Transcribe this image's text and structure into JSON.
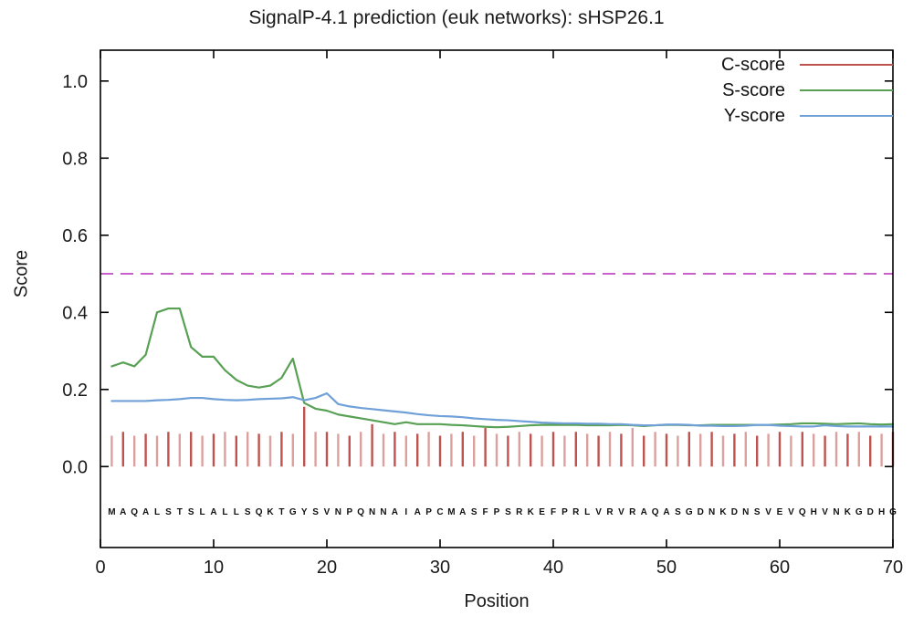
{
  "chart_data": {
    "type": "line",
    "title": "SignalP-4.1 prediction (euk networks): sHSP26.1",
    "xlabel": "Position",
    "ylabel": "Score",
    "xlim": [
      0,
      70
    ],
    "ylim": [
      -0.21,
      1.08
    ],
    "xticks": [
      0,
      10,
      20,
      30,
      40,
      50,
      60,
      70
    ],
    "yticks": [
      0.0,
      0.2,
      0.4,
      0.6,
      0.8,
      1.0
    ],
    "grid": false,
    "legend_position": "top-right",
    "threshold": {
      "value": 0.5,
      "color": "#c95fc9",
      "style": "dashed"
    },
    "sequence": "MAQALSTSLALLSQKTGYSVNPQNNAIAPCMASFPSRKEFPRLVRVRAQASGDNKDNSVEVQHVNKGDHG",
    "x_start": 1,
    "series": [
      {
        "name": "C-score",
        "color": "#bf5350",
        "style": "impulses",
        "values": [
          0.08,
          0.09,
          0.08,
          0.085,
          0.08,
          0.09,
          0.085,
          0.09,
          0.08,
          0.085,
          0.09,
          0.08,
          0.09,
          0.085,
          0.08,
          0.09,
          0.085,
          0.155,
          0.09,
          0.09,
          0.085,
          0.08,
          0.09,
          0.11,
          0.085,
          0.09,
          0.08,
          0.085,
          0.09,
          0.08,
          0.085,
          0.09,
          0.08,
          0.1,
          0.085,
          0.08,
          0.09,
          0.085,
          0.08,
          0.09,
          0.08,
          0.09,
          0.085,
          0.08,
          0.09,
          0.085,
          0.1,
          0.08,
          0.09,
          0.085,
          0.08,
          0.09,
          0.085,
          0.09,
          0.08,
          0.085,
          0.09,
          0.08,
          0.085,
          0.09,
          0.08,
          0.09,
          0.085,
          0.08,
          0.09,
          0.085,
          0.09,
          0.08,
          0.085,
          0.09
        ]
      },
      {
        "name": "S-score",
        "color": "#58a154",
        "style": "line",
        "values": [
          0.26,
          0.27,
          0.26,
          0.29,
          0.4,
          0.41,
          0.41,
          0.31,
          0.285,
          0.285,
          0.25,
          0.225,
          0.21,
          0.205,
          0.21,
          0.23,
          0.28,
          0.165,
          0.15,
          0.145,
          0.135,
          0.13,
          0.125,
          0.12,
          0.115,
          0.11,
          0.115,
          0.11,
          0.11,
          0.11,
          0.108,
          0.107,
          0.105,
          0.103,
          0.102,
          0.103,
          0.105,
          0.107,
          0.108,
          0.108,
          0.108,
          0.108,
          0.107,
          0.107,
          0.107,
          0.108,
          0.107,
          0.105,
          0.107,
          0.108,
          0.108,
          0.107,
          0.107,
          0.108,
          0.108,
          0.108,
          0.108,
          0.108,
          0.108,
          0.109,
          0.11,
          0.112,
          0.112,
          0.111,
          0.11,
          0.111,
          0.112,
          0.11,
          0.109,
          0.11
        ]
      },
      {
        "name": "Y-score",
        "color": "#6fa0d8",
        "style": "line",
        "values": [
          0.17,
          0.17,
          0.17,
          0.17,
          0.172,
          0.173,
          0.175,
          0.178,
          0.178,
          0.175,
          0.173,
          0.172,
          0.173,
          0.175,
          0.176,
          0.177,
          0.18,
          0.172,
          0.178,
          0.19,
          0.162,
          0.156,
          0.152,
          0.149,
          0.146,
          0.143,
          0.14,
          0.136,
          0.133,
          0.131,
          0.13,
          0.128,
          0.125,
          0.123,
          0.121,
          0.12,
          0.118,
          0.116,
          0.114,
          0.113,
          0.112,
          0.112,
          0.111,
          0.111,
          0.11,
          0.11,
          0.108,
          0.107,
          0.107,
          0.109,
          0.109,
          0.108,
          0.106,
          0.106,
          0.105,
          0.105,
          0.106,
          0.108,
          0.108,
          0.106,
          0.105,
          0.104,
          0.104,
          0.107,
          0.105,
          0.104,
          0.104,
          0.104,
          0.104,
          0.104
        ]
      }
    ]
  }
}
